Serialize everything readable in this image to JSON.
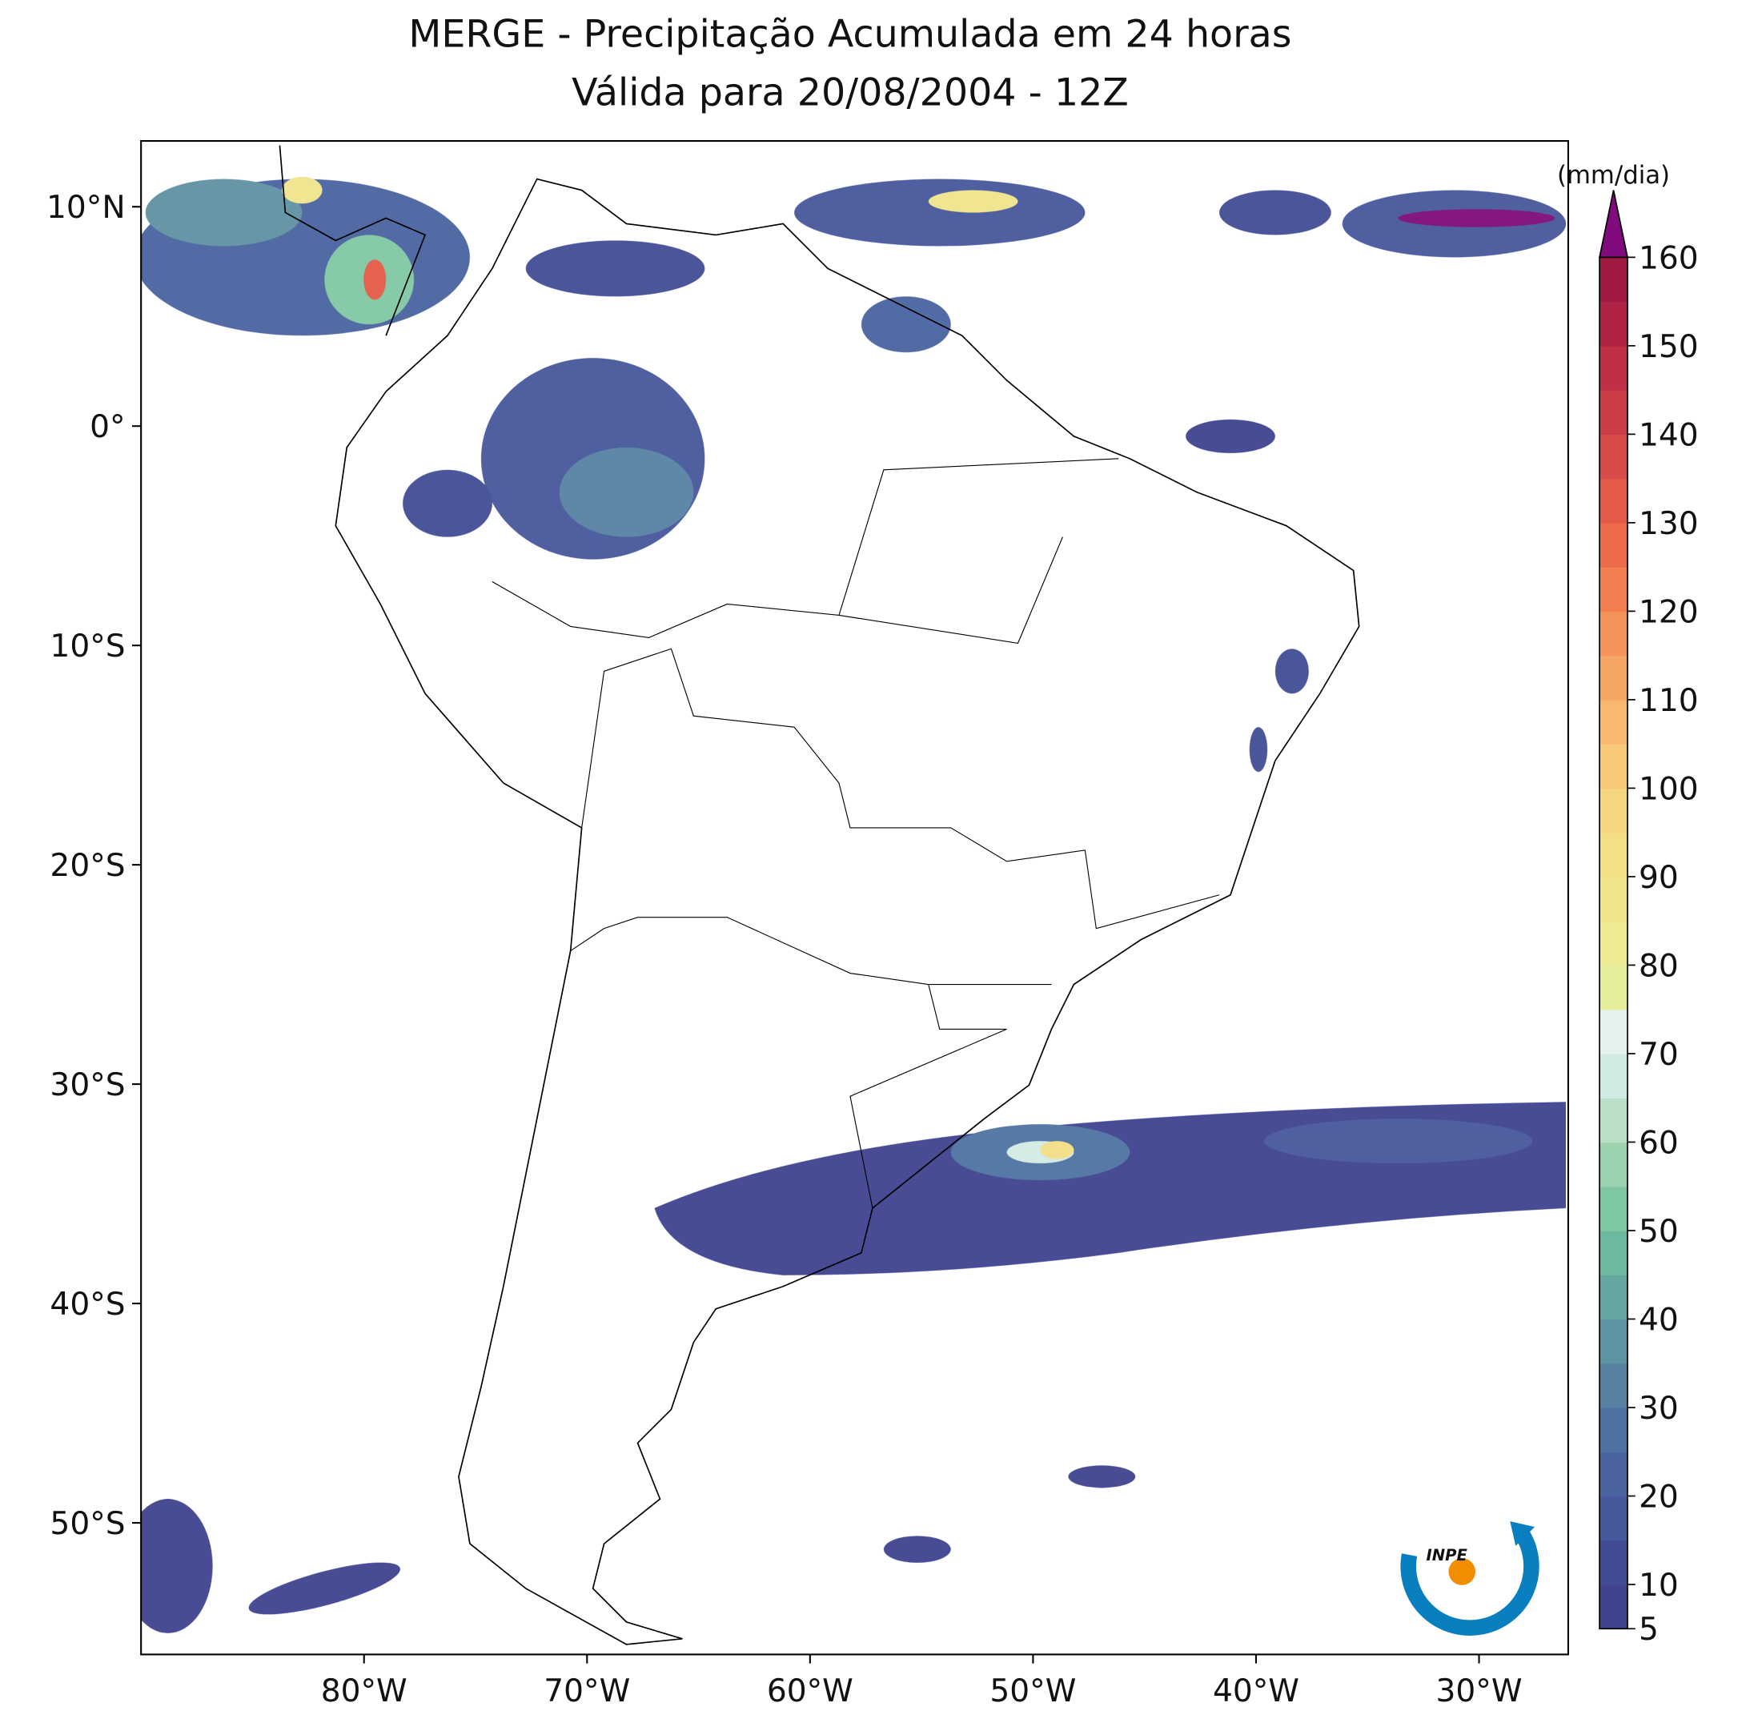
{
  "chart_data": {
    "type": "map",
    "title": "MERGE - Precipitação Acumulada em 24 horas",
    "subtitle": "Válida para 20/08/2004 - 12Z",
    "xlim": [
      -90,
      -26
    ],
    "ylim": [
      -56,
      13
    ],
    "xticks": [
      {
        "value": -80,
        "label": "80°W"
      },
      {
        "value": -70,
        "label": "70°W"
      },
      {
        "value": -60,
        "label": "60°W"
      },
      {
        "value": -50,
        "label": "50°W"
      },
      {
        "value": -40,
        "label": "40°W"
      },
      {
        "value": -30,
        "label": "30°W"
      }
    ],
    "yticks": [
      {
        "value": 10,
        "label": "10°N"
      },
      {
        "value": 0,
        "label": "0°"
      },
      {
        "value": -10,
        "label": "10°S"
      },
      {
        "value": -20,
        "label": "20°S"
      },
      {
        "value": -30,
        "label": "30°S"
      },
      {
        "value": -40,
        "label": "40°S"
      },
      {
        "value": -50,
        "label": "50°S"
      }
    ],
    "colorbar": {
      "label": "(mm/dia)",
      "lim": [
        5,
        160
      ],
      "ticks": [
        5,
        10,
        20,
        30,
        40,
        50,
        60,
        70,
        80,
        90,
        100,
        110,
        120,
        130,
        140,
        150,
        160
      ],
      "bounds": [
        5,
        10,
        15,
        20,
        25,
        30,
        35,
        40,
        45,
        50,
        55,
        60,
        65,
        70,
        75,
        80,
        85,
        90,
        95,
        100,
        105,
        110,
        115,
        120,
        125,
        130,
        135,
        140,
        145,
        150,
        155,
        160
      ],
      "colors": [
        "#3f4390",
        "#424c95",
        "#46579b",
        "#4a64a0",
        "#4f72a2",
        "#5781a3",
        "#5f92a2",
        "#65a6a0",
        "#6cba9f",
        "#80c8a4",
        "#9bd3ae",
        "#b8e0c6",
        "#d2ebe2",
        "#e4f1ee",
        "#e6ee9b",
        "#ecea92",
        "#f0e48c",
        "#f4de86",
        "#f7d680",
        "#f8c979",
        "#f8b870",
        "#f6a664",
        "#f4935a",
        "#f27f50",
        "#ec6b4a",
        "#e45a48",
        "#d94b49",
        "#cc3d48",
        "#bf2f45",
        "#b02443",
        "#a01b42"
      ],
      "extend_color": "#7f0b7c"
    }
  }
}
